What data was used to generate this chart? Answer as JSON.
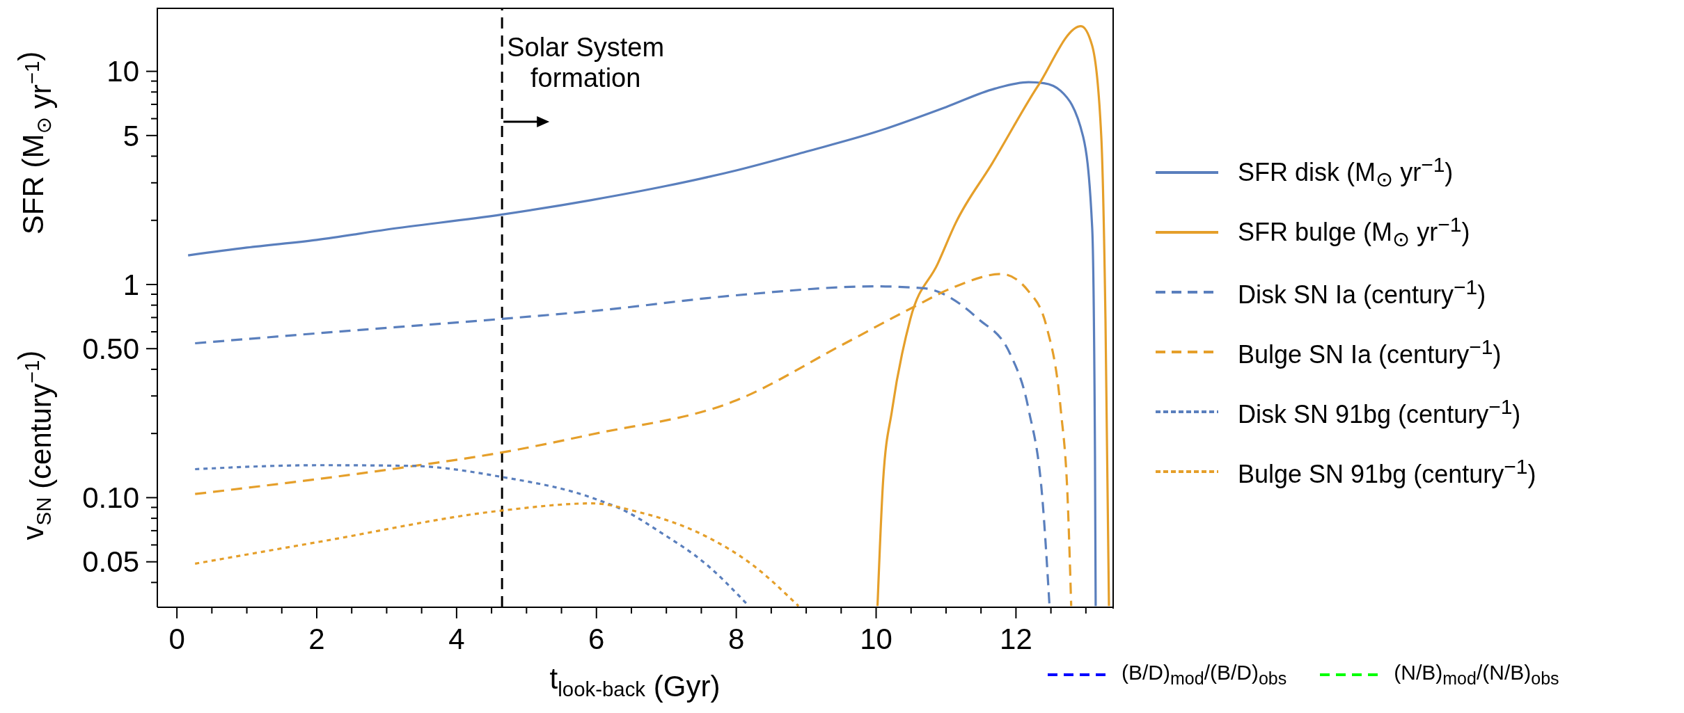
{
  "chart_data": {
    "type": "line",
    "xlabel": "t$_{look-back}$ (Gyr)",
    "ylabel": "SFR (M$_{⊙}$ yr$^{−1}$)",
    "annotations": [
      "v$_{SN}$ (century$^{−1}$)"
    ],
    "xlim": [
      -0.28,
      13.38
    ],
    "xticks": [
      0,
      {
        "value": 0.5,
        "label": null
      },
      {
        "value": 1,
        "label": null
      },
      {
        "value": 1.5,
        "label": null
      },
      2,
      {
        "value": 2.5,
        "label": null
      },
      {
        "value": 3,
        "label": null
      },
      {
        "value": 3.5,
        "label": null
      },
      4,
      {
        "value": 4.5,
        "label": null
      },
      {
        "value": 5,
        "label": null
      },
      {
        "value": 5.5,
        "label": null
      },
      6,
      {
        "value": 6.5,
        "label": null
      },
      {
        "value": 7,
        "label": null
      },
      {
        "value": 7.5,
        "label": null
      },
      8,
      {
        "value": 8.5,
        "label": null
      },
      {
        "value": 9,
        "label": null
      },
      {
        "value": 9.5,
        "label": null
      },
      10,
      {
        "value": 10.5,
        "label": null
      },
      {
        "value": 11,
        "label": null
      },
      {
        "value": 11.5,
        "label": null
      },
      12,
      {
        "value": 12.5,
        "label": null
      },
      {
        "value": 13,
        "label": null
      }
    ],
    "ylim": [
      0.0306,
      19.9
    ],
    "yticks": [
      {
        "value": 0.04,
        "label": null
      },
      0.05,
      {
        "value": 0.06,
        "label": null
      },
      {
        "value": 0.07,
        "label": null
      },
      {
        "value": 0.08,
        "label": null
      },
      {
        "value": 0.09,
        "label": null
      },
      {
        "value": 0.1,
        "label": "0.10"
      },
      {
        "value": 0.2,
        "label": null
      },
      {
        "value": 0.3,
        "label": null
      },
      {
        "value": 0.4,
        "label": null
      },
      {
        "value": 0.5,
        "label": "0.50"
      },
      {
        "value": 0.6,
        "label": null
      },
      {
        "value": 0.7,
        "label": null
      },
      {
        "value": 0.8,
        "label": null
      },
      {
        "value": 0.9,
        "label": null
      },
      1,
      {
        "value": 2,
        "label": null
      },
      {
        "value": 3,
        "label": null
      },
      {
        "value": 4,
        "label": null
      },
      5,
      {
        "value": 6,
        "label": null
      },
      {
        "value": 7,
        "label": null
      },
      {
        "value": 8,
        "label": null
      },
      {
        "value": 9,
        "label": null
      },
      10
    ],
    "log": "y",
    "legend": "right",
    "ref_lines": [
      {
        "axis": "x",
        "value": 4.65,
        "label": "Solar System formation",
        "color": "#000000",
        "line_style": "dashed"
      }
    ],
    "series": [
      {
        "name": "SFR disk (M$_{⊙}$ yr$^{−1}$)",
        "color": "#5a7fbd",
        "line_style": "solid",
        "x": [
          0.16,
          1,
          2,
          3,
          4.65,
          5.93,
          7,
          8,
          9,
          10,
          11,
          11.7,
          12.18,
          12.4,
          12.64,
          12.96,
          13.09,
          13.13,
          13.14
        ],
        "values": [
          1.37,
          1.49,
          1.62,
          1.81,
          2.13,
          2.49,
          2.9,
          3.43,
          4.2,
          5.2,
          6.8,
          8.3,
          8.9,
          8.8,
          8.1,
          4.95,
          1.85,
          0.16,
          0.031
        ]
      },
      {
        "name": "SFR bulge (M$_{⊙}$ yr$^{−1}$)",
        "color": "#e59f2a",
        "line_style": "solid",
        "x": [
          10.02,
          10.1,
          10.23,
          10.49,
          10.88,
          11.14,
          11.66,
          12.31,
          12.93,
          13.09,
          13.22,
          13.28,
          13.33
        ],
        "values": [
          0.031,
          0.12,
          0.26,
          0.69,
          1.25,
          1.95,
          3.7,
          8.5,
          16.3,
          13.2,
          4.95,
          0.69,
          0.031
        ]
      },
      {
        "name": "Disk SN Ia (century$^{−1}$)",
        "color": "#5a7fbd",
        "line_style": "dashed",
        "x": [
          0.26,
          2,
          4.65,
          5.93,
          8,
          10,
          10.68,
          11.46,
          11.92,
          12.18,
          12.38,
          12.48
        ],
        "values": [
          0.53,
          0.59,
          0.69,
          0.75,
          0.89,
          0.98,
          0.96,
          0.69,
          0.47,
          0.26,
          0.097,
          0.031
        ]
      },
      {
        "name": "Bulge SN Ia (century$^{−1}$)",
        "color": "#e59f2a",
        "line_style": "dashed",
        "x": [
          0.26,
          3.2,
          4.65,
          5.93,
          8,
          9.51,
          10.49,
          11.14,
          11.79,
          12.18,
          12.44,
          12.64,
          12.74,
          12.79
        ],
        "values": [
          0.104,
          0.138,
          0.163,
          0.198,
          0.286,
          0.52,
          0.77,
          0.98,
          1.12,
          0.93,
          0.63,
          0.26,
          0.097,
          0.031
        ]
      },
      {
        "name": "Disk SN 91bg (century$^{−1}$)",
        "color": "#5a7fbd",
        "line_style": "dotted",
        "x": [
          0.26,
          2.03,
          3.33,
          4.65,
          5.93,
          6.43,
          6.91,
          7.56,
          8.18
        ],
        "values": [
          0.136,
          0.142,
          0.141,
          0.125,
          0.1,
          0.086,
          0.069,
          0.049,
          0.031
        ]
      },
      {
        "name": "Bulge SN 91bg (century$^{−1}$)",
        "color": "#e59f2a",
        "line_style": "dotted",
        "x": [
          0.26,
          2.03,
          4.65,
          5.94,
          6.58,
          7.56,
          8.21,
          8.89
        ],
        "values": [
          0.049,
          0.062,
          0.087,
          0.094,
          0.086,
          0.066,
          0.049,
          0.031
        ]
      },
      {
        "name": "(B/D)$_{mod}$/(B/D)$_{obs}$",
        "color": "#0000ff",
        "line_style": "dashed"
      },
      {
        "name": "(N/B)$_{mod}$/(N/B)$_{obs}$",
        "color": "#00ff00",
        "line_style": "dashed"
      }
    ]
  }
}
